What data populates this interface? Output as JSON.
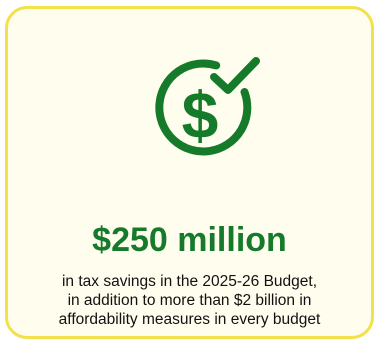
{
  "card": {
    "icon": "dollar-check-icon",
    "amount": "$250 million",
    "description_lines": [
      "in tax savings in the 2025-26 Budget,",
      "in addition to more than $2 billion in",
      "affordability measures in every budget"
    ]
  },
  "colors": {
    "accent_green": "#167a2b",
    "border_yellow": "#f2e14a",
    "card_background": "#fffdee"
  }
}
